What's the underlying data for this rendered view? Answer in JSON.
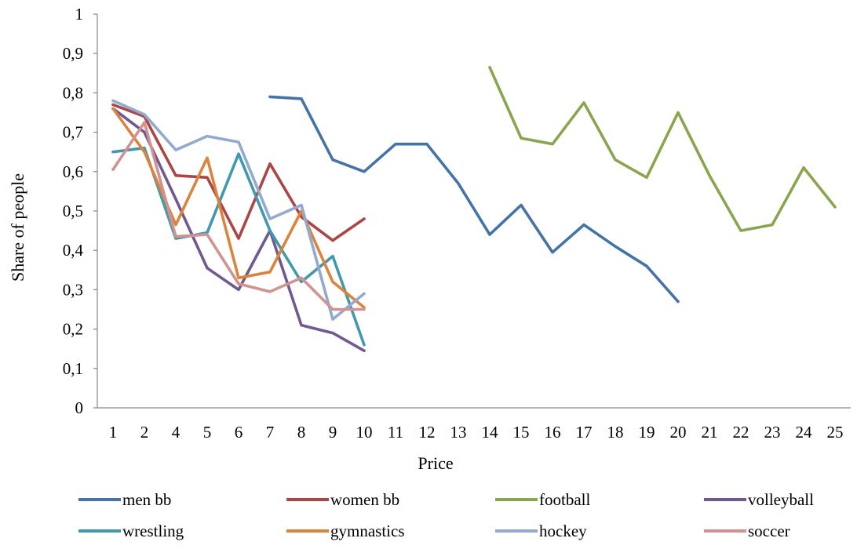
{
  "chart_data": {
    "type": "line",
    "xlabel": "Price",
    "ylabel": "Share of people",
    "categories": [
      "1",
      "2",
      "4",
      "5",
      "6",
      "7",
      "8",
      "9",
      "10",
      "11",
      "12",
      "13",
      "14",
      "15",
      "16",
      "17",
      "18",
      "19",
      "20",
      "21",
      "22",
      "23",
      "24",
      "25"
    ],
    "y_ticks": [
      "0",
      "0,1",
      "0,2",
      "0,3",
      "0,4",
      "0,5",
      "0,6",
      "0,7",
      "0,8",
      "0,9",
      "1"
    ],
    "ylim": [
      0,
      1
    ],
    "grid": false,
    "legend_position": "bottom",
    "series": [
      {
        "name": "men bb",
        "color": "#4573A7",
        "values": [
          null,
          null,
          null,
          null,
          null,
          0.79,
          0.785,
          0.63,
          0.6,
          0.67,
          0.67,
          0.57,
          0.44,
          0.515,
          0.395,
          0.465,
          0.41,
          0.36,
          0.27,
          null,
          null,
          null,
          null,
          null
        ]
      },
      {
        "name": "women bb",
        "color": "#AA4644",
        "values": [
          0.77,
          0.74,
          0.59,
          0.585,
          0.43,
          0.62,
          0.485,
          0.425,
          0.48,
          null,
          null,
          null,
          null,
          null,
          null,
          null,
          null,
          null,
          null,
          null,
          null,
          null,
          null,
          null
        ]
      },
      {
        "name": "football",
        "color": "#89A54E",
        "values": [
          null,
          null,
          null,
          null,
          null,
          null,
          null,
          null,
          null,
          null,
          null,
          null,
          0.865,
          0.685,
          0.67,
          0.775,
          0.63,
          0.585,
          0.75,
          0.59,
          0.45,
          0.465,
          0.61,
          0.51
        ]
      },
      {
        "name": "volleyball",
        "color": "#71588F",
        "values": [
          0.76,
          0.7,
          0.53,
          0.355,
          0.3,
          0.45,
          0.21,
          0.19,
          0.145,
          null,
          null,
          null,
          null,
          null,
          null,
          null,
          null,
          null,
          null,
          null,
          null,
          null,
          null,
          null
        ]
      },
      {
        "name": "wrestling",
        "color": "#4198AF",
        "values": [
          0.65,
          0.66,
          0.43,
          0.445,
          0.645,
          0.45,
          0.32,
          0.385,
          0.16,
          null,
          null,
          null,
          null,
          null,
          null,
          null,
          null,
          null,
          null,
          null,
          null,
          null,
          null,
          null
        ]
      },
      {
        "name": "gymnastics",
        "color": "#DB843D",
        "values": [
          0.76,
          0.65,
          0.465,
          0.635,
          0.33,
          0.345,
          0.5,
          0.32,
          0.255,
          null,
          null,
          null,
          null,
          null,
          null,
          null,
          null,
          null,
          null,
          null,
          null,
          null,
          null,
          null
        ]
      },
      {
        "name": "hockey",
        "color": "#93A9CF",
        "values": [
          0.78,
          0.745,
          0.655,
          0.69,
          0.675,
          0.48,
          0.515,
          0.225,
          0.29,
          null,
          null,
          null,
          null,
          null,
          null,
          null,
          null,
          null,
          null,
          null,
          null,
          null,
          null,
          null
        ]
      },
      {
        "name": "soccer",
        "color": "#D19392",
        "values": [
          0.605,
          0.725,
          0.435,
          0.44,
          0.315,
          0.295,
          0.33,
          0.25,
          0.25,
          null,
          null,
          null,
          null,
          null,
          null,
          null,
          null,
          null,
          null,
          null,
          null,
          null,
          null,
          null
        ]
      }
    ]
  }
}
